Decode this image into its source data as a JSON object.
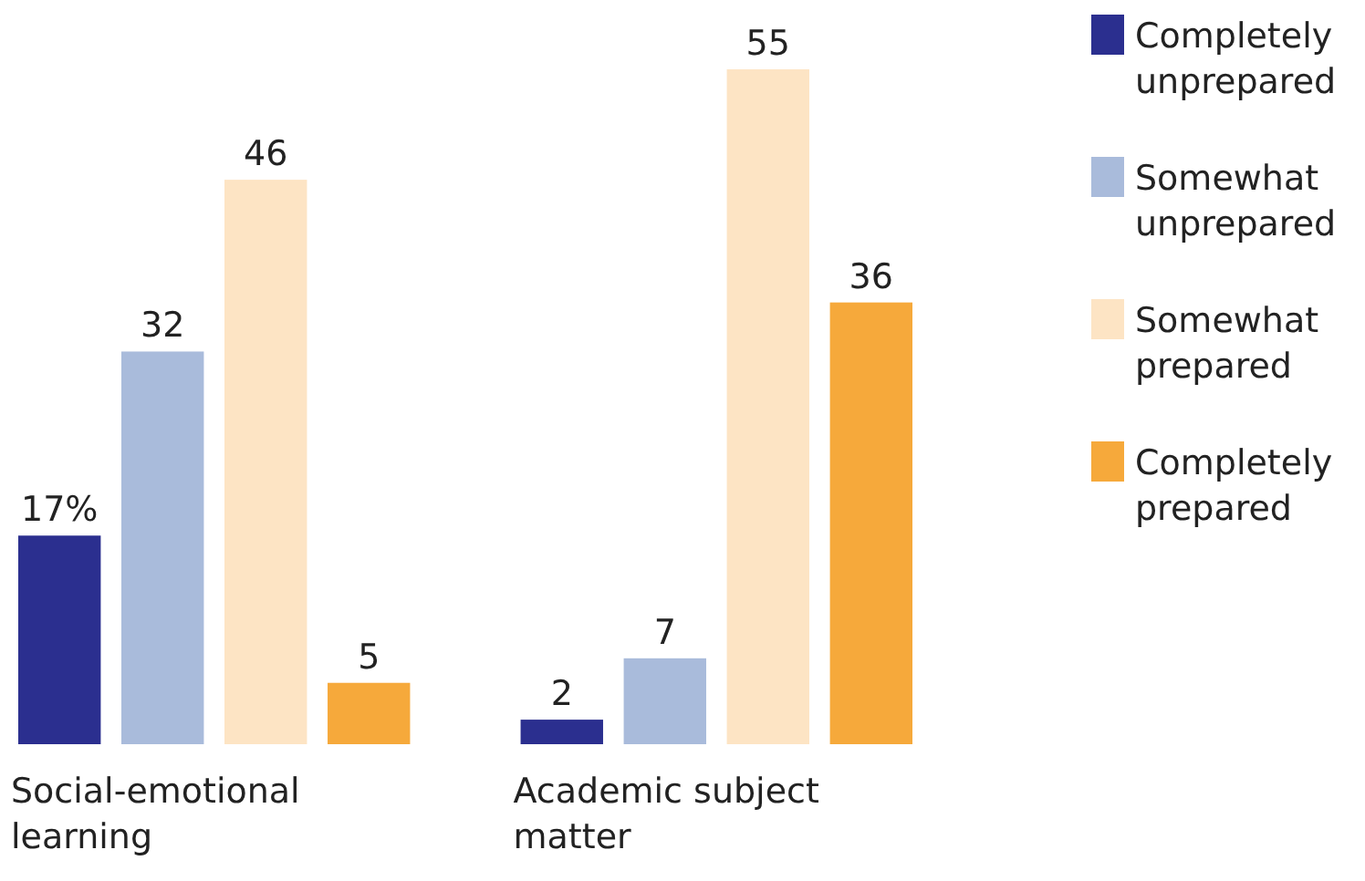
{
  "chart_data": {
    "type": "bar",
    "categories": [
      "Social-emotional learning",
      "Academic subject matter"
    ],
    "series": [
      {
        "name": "Completely unprepared",
        "color": "#2b2f8f",
        "values": [
          17,
          2
        ],
        "value_labels": [
          "17%",
          "2"
        ]
      },
      {
        "name": "Somewhat unprepared",
        "color": "#a9bbdb",
        "values": [
          32,
          7
        ],
        "value_labels": [
          "32",
          "7"
        ]
      },
      {
        "name": "Somewhat prepared",
        "color": "#fde4c4",
        "values": [
          46,
          55
        ],
        "value_labels": [
          "46",
          "55"
        ]
      },
      {
        "name": "Completely prepared",
        "color": "#f6a93b",
        "values": [
          5,
          36
        ],
        "value_labels": [
          "5",
          "36"
        ]
      }
    ],
    "legend": "right"
  }
}
